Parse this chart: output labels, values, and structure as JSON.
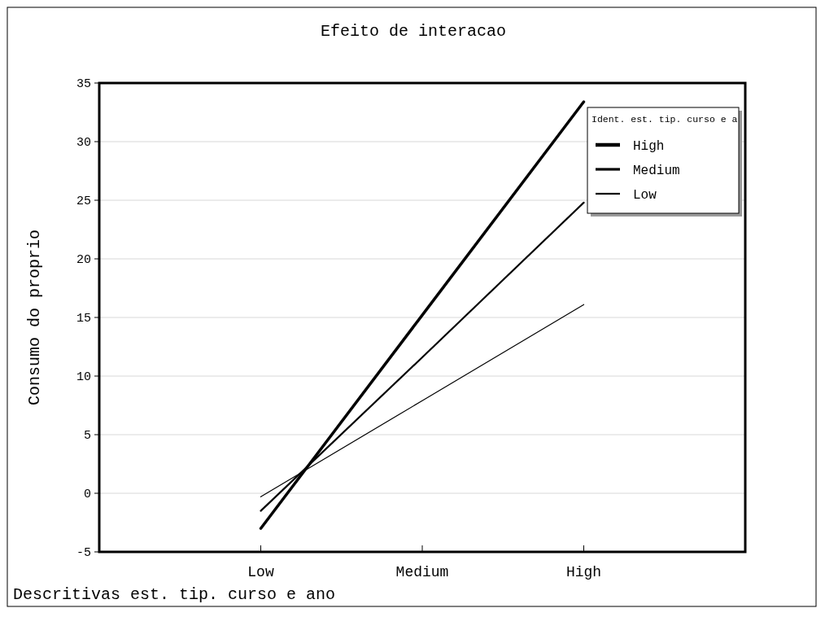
{
  "chart_data": {
    "type": "line",
    "title": "Efeito de interacao",
    "xlabel": "Descritivas est. tip. curso e ano",
    "ylabel": "Consumo do proprio",
    "legend_title": "Ident. est. tip. curso e a",
    "categories": [
      "Low",
      "Medium",
      "High"
    ],
    "series": [
      {
        "name": "High",
        "color": "#000000",
        "values": [
          -3,
          15.2,
          33.4
        ]
      },
      {
        "name": "Medium",
        "color": "#000000",
        "values": [
          -1.5,
          11.6,
          24.8
        ]
      },
      {
        "name": "Low",
        "color": "#000000",
        "values": [
          -0.3,
          7.9,
          16.1
        ]
      }
    ],
    "ylim": [
      -5,
      35
    ],
    "yticks": [
      -5,
      0,
      5,
      10,
      15,
      20,
      25,
      30,
      35
    ],
    "grid": "y",
    "legend": "top right",
    "line_style": "solid",
    "marker": "none"
  }
}
